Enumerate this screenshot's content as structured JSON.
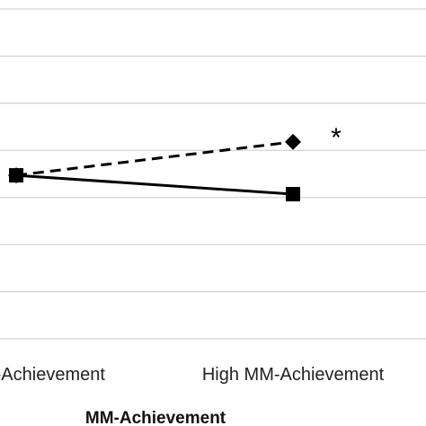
{
  "chart_data": {
    "type": "line",
    "categories": [
      "Low MM-Achievement",
      "High MM-Achievement"
    ],
    "series": [
      {
        "marker": "diamond",
        "line_style": "dashed",
        "color": "#000000",
        "values": [
          3.47,
          4.18
        ]
      },
      {
        "marker": "square",
        "line_style": "solid",
        "color": "#000000",
        "values": [
          3.47,
          3.07
        ]
      }
    ],
    "xlabel": "MM-Achievement",
    "ylabel": "",
    "ylim": [
      0,
      7
    ],
    "yticks": [
      0,
      1,
      2,
      3,
      4,
      5,
      6,
      7
    ],
    "grid": true,
    "annotations": [
      {
        "text": "*",
        "category": "High MM-Achievement",
        "y": 4.35
      }
    ]
  }
}
